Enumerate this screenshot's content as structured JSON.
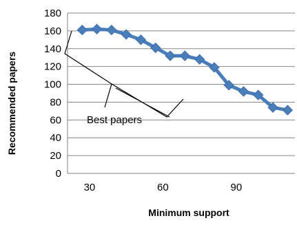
{
  "chart_data": {
    "type": "line",
    "xlabel": "Minimum support",
    "ylabel": "Recommended papers",
    "x": [
      27,
      33,
      39,
      45,
      51,
      57,
      63,
      69,
      75,
      81,
      87,
      93,
      99,
      105,
      111
    ],
    "values": [
      161,
      162,
      161,
      156,
      150,
      141,
      132,
      132,
      128,
      119,
      99,
      92,
      88,
      74,
      71
    ],
    "x_ticks": [
      30,
      60,
      90
    ],
    "x_tick_labels": [
      "30",
      "60",
      "90"
    ],
    "y_ticks": [
      0,
      20,
      40,
      60,
      80,
      100,
      120,
      140,
      160,
      180
    ],
    "y_tick_labels": [
      "0",
      "20",
      "40",
      "60",
      "80",
      "100",
      "120",
      "140",
      "160",
      "180"
    ],
    "ylim": [
      0,
      180
    ],
    "xlim": [
      21,
      114
    ],
    "grid": "horizontal",
    "line_color": "#4a7ebb",
    "annotation": {
      "text": "Best papers"
    }
  }
}
